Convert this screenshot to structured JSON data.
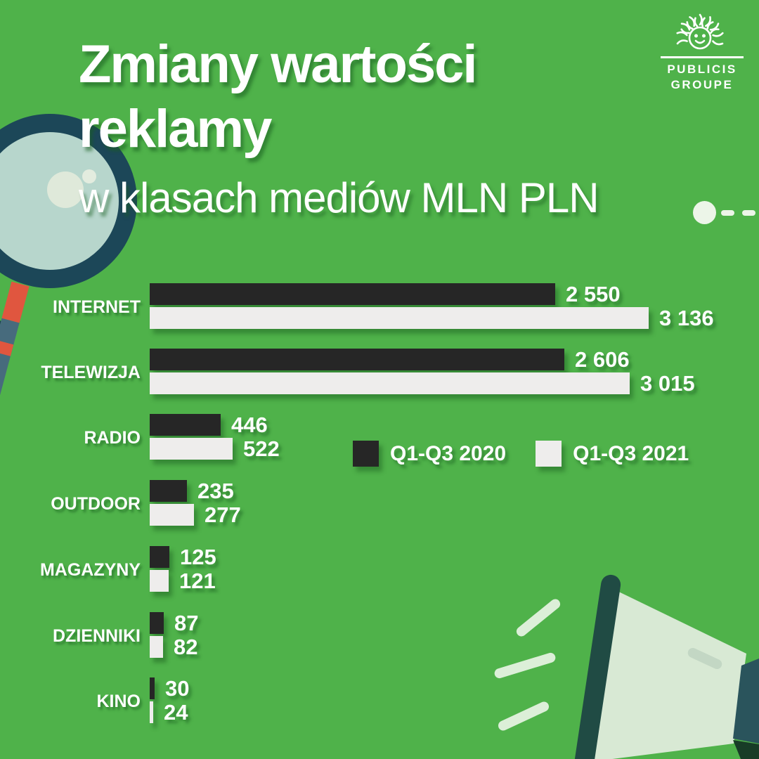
{
  "header": {
    "title_line1": "Zmiany wartości",
    "title_line2": "reklamy",
    "subtitle": "w klasach mediów MLN PLN"
  },
  "brand": {
    "name_line1": "PUBLICIS",
    "name_line2": "GROUPE"
  },
  "colors": {
    "background": "#4fb24a",
    "bar_2020": "#262626",
    "bar_2021": "#eeedec",
    "text": "#ffffff"
  },
  "chart_data": {
    "type": "bar",
    "orientation": "horizontal",
    "title": "Zmiany wartości reklamy",
    "subtitle": "w klasach mediów MLN PLN",
    "unit": "MLN PLN",
    "grid": false,
    "legend_position": "center-right",
    "categories": [
      "INTERNET",
      "TELEWIZJA",
      "RADIO",
      "OUTDOOR",
      "MAGAZYNY",
      "DZIENNIKI",
      "KINO"
    ],
    "series": [
      {
        "name": "Q1-Q3 2020",
        "color": "#262626",
        "values": [
          2550,
          2606,
          446,
          235,
          125,
          87,
          30
        ],
        "labels": [
          "2 550",
          "2 606",
          "446",
          "235",
          "125",
          "87",
          "30"
        ]
      },
      {
        "name": "Q1-Q3 2021",
        "color": "#eeedec",
        "values": [
          3136,
          3015,
          522,
          277,
          121,
          82,
          24
        ],
        "labels": [
          "3 136",
          "3 015",
          "522",
          "277",
          "121",
          "82",
          "24"
        ]
      }
    ]
  }
}
